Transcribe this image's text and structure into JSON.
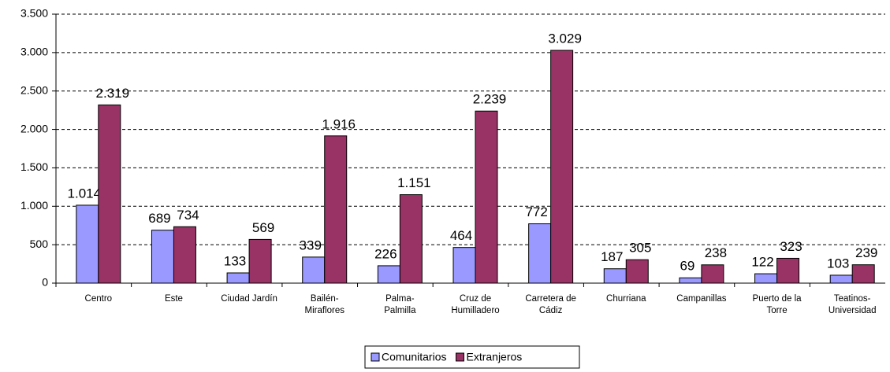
{
  "chart_data": {
    "type": "bar",
    "categories": [
      "Centro",
      "Este",
      "Ciudad Jardín",
      "Bailén-\nMiraflores",
      "Palma-\nPalmilla",
      "Cruz de\nHumilladero",
      "Carretera de\nCádiz",
      "Churriana",
      "Campanillas",
      "Puerto de la\nTorre",
      "Teatinos-\nUniversidad"
    ],
    "series": [
      {
        "name": "Comunitarios",
        "color": "#9999ff",
        "values": [
          1014,
          689,
          133,
          339,
          226,
          464,
          772,
          187,
          69,
          122,
          103
        ],
        "value_labels": [
          "1.014",
          "689",
          "133",
          "339",
          "226",
          "464",
          "772",
          "187",
          "69",
          "122",
          "103"
        ]
      },
      {
        "name": "Extranjeros",
        "color": "#993366",
        "values": [
          2319,
          734,
          569,
          1916,
          1151,
          2239,
          3029,
          305,
          238,
          323,
          239
        ],
        "value_labels": [
          "2.319",
          "734",
          "569",
          "1.916",
          "1.151",
          "2.239",
          "3.029",
          "305",
          "238",
          "323",
          "239"
        ]
      }
    ],
    "ylim": [
      0,
      3500
    ],
    "yticks": [
      0,
      500,
      {
        "value": 1000,
        "label": "1.000"
      },
      {
        "value": 1500,
        "label": "1.500"
      },
      {
        "value": 2000,
        "label": "2.000"
      },
      {
        "value": 2500,
        "label": "2.500"
      },
      {
        "value": 3000,
        "label": "3.000"
      },
      {
        "value": 3500,
        "label": "3.500"
      }
    ],
    "grid": true,
    "legend": "bottom"
  }
}
